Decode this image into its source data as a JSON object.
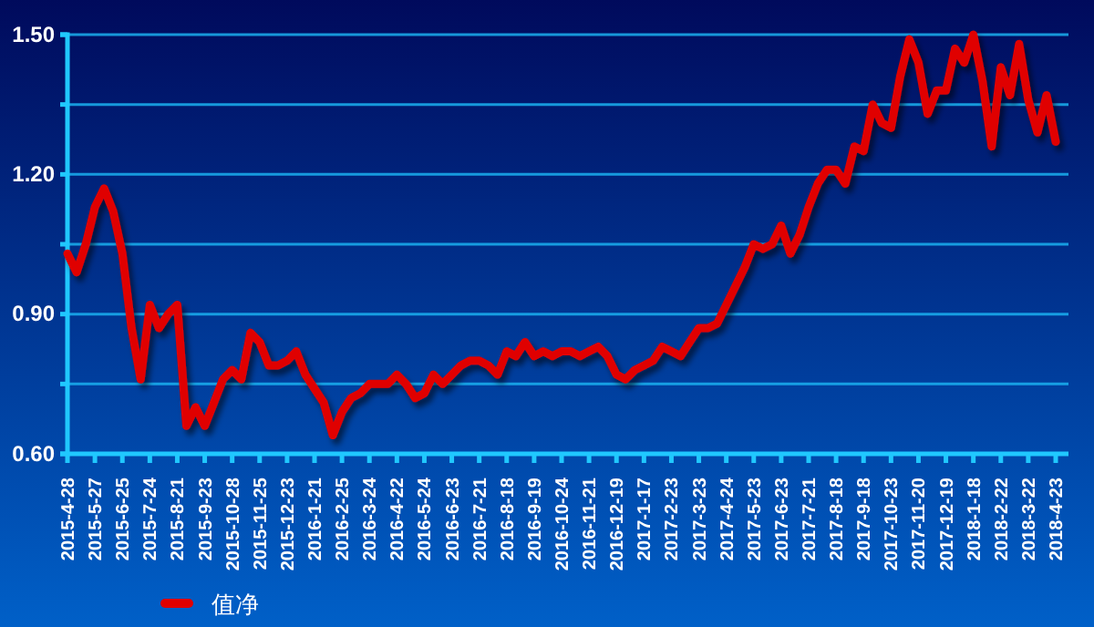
{
  "chart_data": {
    "type": "line",
    "categories": [
      "2015-4-28",
      null,
      null,
      "2015-5-27",
      null,
      null,
      "2015-6-25",
      null,
      null,
      "2015-7-24",
      null,
      null,
      "2015-8-21",
      null,
      null,
      "2015-9-23",
      null,
      null,
      "2015-10-28",
      null,
      null,
      "2015-11-25",
      null,
      null,
      "2015-12-23",
      null,
      null,
      "2016-1-21",
      null,
      null,
      "2016-2-25",
      null,
      null,
      "2016-3-24",
      null,
      null,
      "2016-4-22",
      null,
      null,
      "2016-5-24",
      null,
      null,
      "2016-6-23",
      null,
      null,
      "2016-7-21",
      null,
      null,
      "2016-8-18",
      null,
      null,
      "2016-9-19",
      null,
      null,
      "2016-10-24",
      null,
      null,
      "2016-11-21",
      null,
      null,
      "2016-12-19",
      null,
      null,
      "2017-1-17",
      null,
      null,
      "2017-2-23",
      null,
      null,
      "2017-3-23",
      null,
      null,
      "2017-4-24",
      null,
      null,
      "2017-5-23",
      null,
      null,
      "2017-6-23",
      null,
      null,
      "2017-7-21",
      null,
      null,
      "2017-8-18",
      null,
      null,
      "2017-9-18",
      null,
      null,
      "2017-10-23",
      null,
      null,
      "2017-11-20",
      null,
      null,
      "2017-12-19",
      null,
      null,
      "2018-1-18",
      null,
      null,
      "2018-2-22",
      null,
      null,
      "2018-3-22",
      null,
      null,
      "2018-4-23"
    ],
    "series": [
      {
        "name": "值净",
        "color": "#e00000",
        "values": [
          1.03,
          0.99,
          1.05,
          1.13,
          1.17,
          1.12,
          1.03,
          0.87,
          0.76,
          0.92,
          0.87,
          0.9,
          0.92,
          0.66,
          0.7,
          0.66,
          0.71,
          0.76,
          0.78,
          0.76,
          0.86,
          0.84,
          0.79,
          0.79,
          0.8,
          0.82,
          0.77,
          0.74,
          0.71,
          0.64,
          0.69,
          0.72,
          0.73,
          0.75,
          0.75,
          0.75,
          0.77,
          0.75,
          0.72,
          0.73,
          0.77,
          0.75,
          0.77,
          0.79,
          0.8,
          0.8,
          0.79,
          0.77,
          0.82,
          0.81,
          0.84,
          0.81,
          0.82,
          0.81,
          0.82,
          0.82,
          0.81,
          0.82,
          0.83,
          0.81,
          0.77,
          0.76,
          0.78,
          0.79,
          0.8,
          0.83,
          0.82,
          0.81,
          0.84,
          0.87,
          0.87,
          0.88,
          0.92,
          0.96,
          1.0,
          1.05,
          1.04,
          1.05,
          1.09,
          1.03,
          1.07,
          1.13,
          1.18,
          1.21,
          1.21,
          1.18,
          1.26,
          1.25,
          1.35,
          1.31,
          1.3,
          1.41,
          1.49,
          1.44,
          1.33,
          1.38,
          1.38,
          1.47,
          1.44,
          1.5,
          1.4,
          1.26,
          1.43,
          1.37,
          1.48,
          1.36,
          1.29,
          1.37,
          1.27
        ]
      }
    ],
    "ylim": [
      0.6,
      1.5
    ],
    "yticks": [
      {
        "value": 0.6,
        "label": "0.60"
      },
      {
        "value": 0.75,
        "label": null
      },
      {
        "value": 0.9,
        "label": "0.90"
      },
      {
        "value": 1.05,
        "label": null
      },
      {
        "value": 1.2,
        "label": "1.20"
      },
      {
        "value": 1.35,
        "label": null
      },
      {
        "value": 1.5,
        "label": "1.50"
      }
    ],
    "grid": "y",
    "legend": "bottom left",
    "marker": "none",
    "line_style": "solid"
  }
}
